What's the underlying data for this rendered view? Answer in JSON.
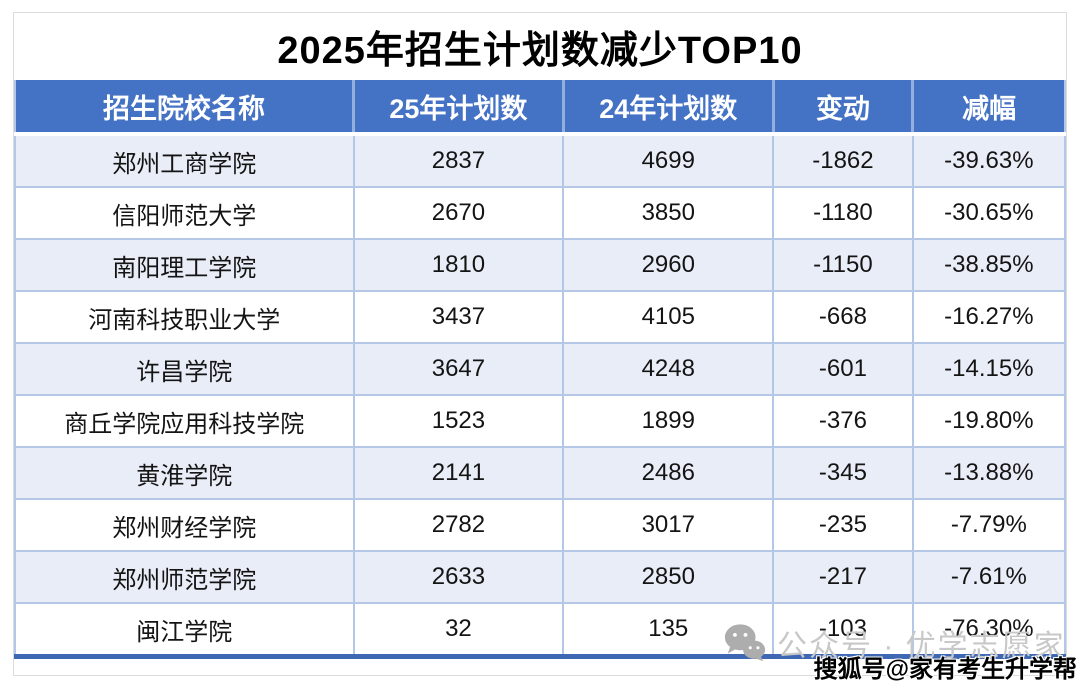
{
  "chart_data": {
    "type": "table",
    "title": "2025年招生计划数减少TOP10",
    "columns": [
      "招生院校名称",
      "25年计划数",
      "24年计划数",
      "变动",
      "减幅"
    ],
    "rows": [
      [
        "郑州工商学院",
        "2837",
        "4699",
        "-1862",
        "-39.63%"
      ],
      [
        "信阳师范大学",
        "2670",
        "3850",
        "-1180",
        "-30.65%"
      ],
      [
        "南阳理工学院",
        "1810",
        "2960",
        "-1150",
        "-38.85%"
      ],
      [
        "河南科技职业大学",
        "3437",
        "4105",
        "-668",
        "-16.27%"
      ],
      [
        "许昌学院",
        "3647",
        "4248",
        "-601",
        "-14.15%"
      ],
      [
        "商丘学院应用科技学院",
        "1523",
        "1899",
        "-376",
        "-19.80%"
      ],
      [
        "黄淮学院",
        "2141",
        "2486",
        "-345",
        "-13.88%"
      ],
      [
        "郑州财经学院",
        "2782",
        "3017",
        "-235",
        "-7.79%"
      ],
      [
        "郑州师范学院",
        "2633",
        "2850",
        "-217",
        "-7.61%"
      ],
      [
        "闽江学院",
        "32",
        "135",
        "-103",
        "-76.30%"
      ]
    ]
  },
  "watermarks": {
    "wechat_text": "公众号 · 优学志愿家",
    "sohu_text": "搜狐号@家有考生升学帮"
  },
  "colors": {
    "header_bg": "#4472C4",
    "header_text": "#FFFFFF",
    "band_row_bg": "#E9EDF7",
    "grid_line": "#B4C7E7",
    "header_divider": "#94AEDD",
    "table_bottom_border": "#3E68B3",
    "watermark_gray": "#C8C8C8"
  }
}
